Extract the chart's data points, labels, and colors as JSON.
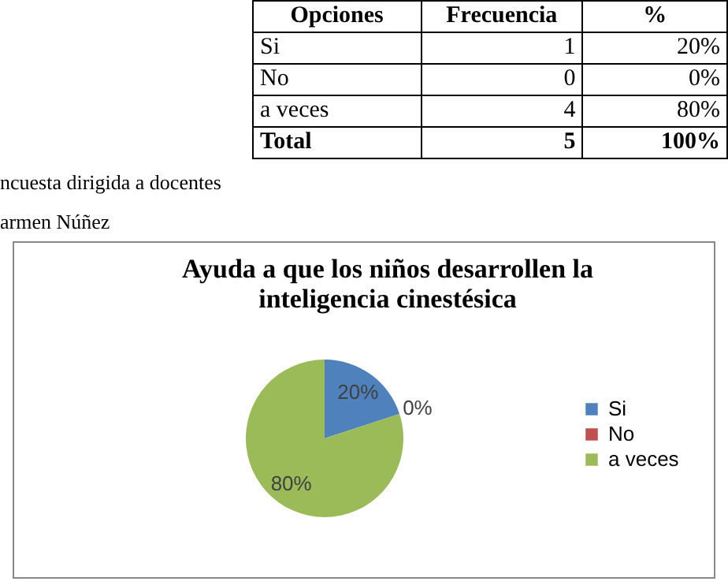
{
  "chart_data": {
    "type": "pie",
    "title": "Ayuda a que los niños desarrollen la inteligencia cinestésica",
    "categories": [
      "Si",
      "No",
      "a veces"
    ],
    "values": [
      20,
      0,
      80
    ],
    "value_labels": [
      "20%",
      "0%",
      "80%"
    ],
    "colors": [
      "#4f81bd",
      "#c0504d",
      "#9bbb59"
    ],
    "legend": "right",
    "annotations": [
      "Opciones",
      "Frecuencia",
      "%",
      "Si",
      "1",
      "20%",
      "No",
      "0",
      "0%",
      "a veces",
      "4",
      "80%",
      "Total",
      "5",
      "100%",
      "ncuesta dirigida a docentes",
      "armen Núñez"
    ]
  }
}
